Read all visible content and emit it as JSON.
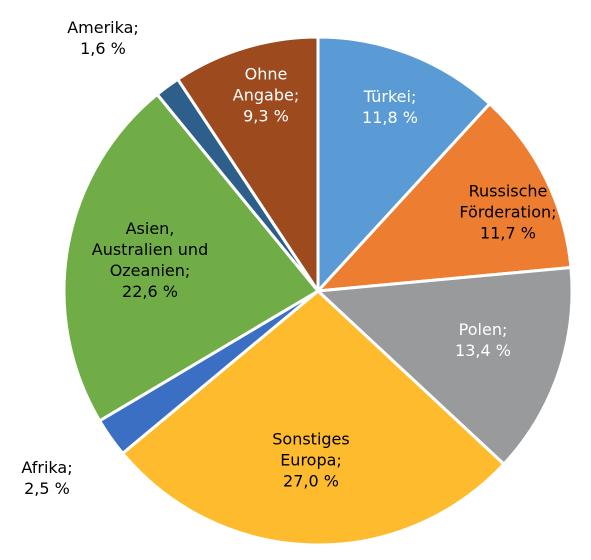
{
  "chart_data": {
    "type": "pie",
    "categories": [
      "Türkei;",
      "Russische Förderation;",
      "Polen;",
      "Sonstiges Europa;",
      "Afrika;",
      "Asien, Australien und Ozeanien;",
      "Amerika;",
      "Ohne Angabe;"
    ],
    "values": [
      11.8,
      11.7,
      13.4,
      27.0,
      2.5,
      22.6,
      1.6,
      9.3
    ],
    "value_labels": [
      "11,8 %",
      "11,7 %",
      "13,4 %",
      "27,0 %",
      "2,5 %",
      "22,6 %",
      "1,6 %",
      "9,3 %"
    ],
    "colors": [
      "#5b9bd5",
      "#ed7d31",
      "#999a9b",
      "#fdbb2d",
      "#3a6fc4",
      "#70ad47",
      "#2e5f8a",
      "#9c4a1e"
    ],
    "label_colors": [
      "#ffffff",
      "#000000",
      "#ffffff",
      "#000000",
      "#000000",
      "#000000",
      "#000000",
      "#ffffff"
    ]
  }
}
